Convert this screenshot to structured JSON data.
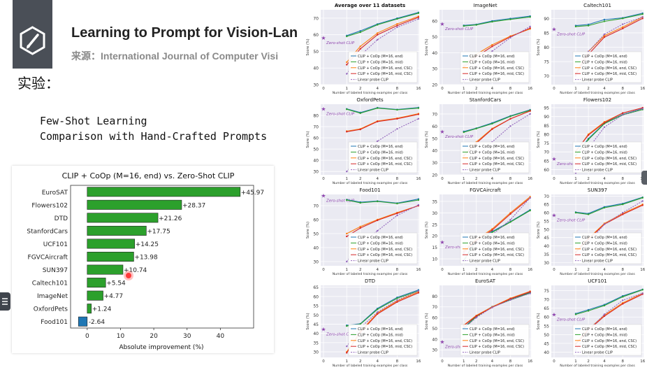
{
  "header": {
    "title": "Learning to Prompt for Vision-Lan",
    "subtitle": "来源：International Journal of Computer Visi",
    "logo_icon": "pencil-icon"
  },
  "section_label": "实验：",
  "points": [
    "Few-Shot Learning",
    "Comparison with Hand-Crafted Prompts"
  ],
  "chart_data": [
    {
      "type": "bar",
      "orientation": "horizontal",
      "title": "CLIP + CoOp (M=16, end) vs. Zero-Shot CLIP",
      "xlabel": "Absolute improvement (%)",
      "xlim": [
        -5,
        50
      ],
      "xticks": [
        0,
        10,
        20,
        30,
        40
      ],
      "categories": [
        "EuroSAT",
        "Flowers102",
        "DTD",
        "StanfordCars",
        "UCF101",
        "FGVCAircraft",
        "SUN397",
        "Caltech101",
        "ImageNet",
        "OxfordPets",
        "Food101"
      ],
      "values": [
        45.97,
        28.37,
        21.26,
        17.75,
        14.25,
        13.98,
        10.74,
        5.54,
        4.77,
        1.24,
        -2.64
      ],
      "labels": [
        "+45.97",
        "+28.37",
        "+21.26",
        "+17.75",
        "+14.25",
        "+13.98",
        "+10.74",
        "+5.54",
        "+4.77",
        "+1.24",
        "-2.64"
      ],
      "positive_color": "#2ca02c",
      "negative_color": "#1f77b4"
    },
    {
      "type": "line",
      "grid": true,
      "x": [
        0,
        1,
        2,
        4,
        8,
        16
      ],
      "xlabel": "Number of labeled training examples per class",
      "ylabel": "Score (%)",
      "zero_shot_label": "Zero-shot CLIP",
      "series_names": [
        "CLIP + CoOp (M=16, end)",
        "CLIP + CoOp (M=16, mid)",
        "CLIP + CoOp (M=16, end, CSC)",
        "CLIP + CoOp (M=16, mid, CSC)",
        "Linear probe CLIP"
      ],
      "series_colors": [
        "#1f77b4",
        "#2ca02c",
        "#ff7f0e",
        "#d62728",
        "#9467bd"
      ],
      "panels": [
        {
          "title": "Average over 11 datasets",
          "bold": true,
          "ylim": [
            30,
            75
          ],
          "yticks": [
            30,
            40,
            50,
            60,
            70
          ],
          "zs": 58.2,
          "series": [
            [
              59.5,
              62.3,
              66.4,
              69.9,
              73.4
            ],
            [
              59.0,
              61.5,
              66.0,
              69.5,
              73.0
            ],
            [
              43.5,
              53.0,
              61.0,
              66.5,
              71.0
            ],
            [
              42.0,
              51.5,
              60.0,
              65.5,
              70.5
            ],
            [
              36.5,
              47.5,
              57.0,
              64.5,
              69.5
            ]
          ]
        },
        {
          "title": "ImageNet",
          "ylim": [
            20,
            67
          ],
          "yticks": [
            20,
            30,
            40,
            50,
            60
          ],
          "zs": 58.2,
          "series": [
            [
              57.2,
              57.8,
              60.0,
              61.5,
              63.0
            ],
            [
              56.8,
              57.5,
              59.5,
              61.0,
              62.5
            ],
            [
              32.0,
              39.0,
              45.0,
              50.5,
              55.0
            ],
            [
              31.0,
              37.5,
              44.0,
              50.0,
              55.5
            ],
            [
              22.0,
              31.5,
              41.0,
              49.5,
              56.5
            ]
          ]
        },
        {
          "title": "Caltech101",
          "ylim": [
            67,
            93
          ],
          "yticks": [
            70,
            75,
            80,
            85,
            90
          ],
          "zs": 86.3,
          "series": [
            [
              87.5,
              87.9,
              89.6,
              90.2,
              91.8
            ],
            [
              87.2,
              87.5,
              89.0,
              90.0,
              91.5
            ],
            [
              71.0,
              78.5,
              84.0,
              87.0,
              90.5
            ],
            [
              70.5,
              77.5,
              83.5,
              86.5,
              90.0
            ],
            [
              70.0,
              78.5,
              84.5,
              88.0,
              90.5
            ]
          ]
        },
        {
          "title": "OxfordPets",
          "ylim": [
            27,
            90
          ],
          "yticks": [
            30,
            40,
            50,
            60,
            70,
            80
          ],
          "zs": 85.8,
          "series": [
            [
              85.8,
              82.6,
              86.9,
              85.3,
              87.0
            ],
            [
              85.5,
              82.0,
              86.5,
              85.0,
              86.5
            ],
            [
              66.0,
              68.0,
              75.0,
              77.5,
              81.5
            ],
            [
              65.5,
              67.5,
              74.5,
              77.0,
              81.0
            ],
            [
              30.0,
              44.0,
              57.0,
              68.0,
              77.0
            ]
          ]
        },
        {
          "title": "StanfordCars",
          "ylim": [
            20,
            78
          ],
          "yticks": [
            20,
            30,
            40,
            50,
            60,
            70
          ],
          "zs": 55.6,
          "series": [
            [
              55.6,
              58.3,
              62.6,
              68.4,
              73.4
            ],
            [
              55.0,
              58.0,
              62.0,
              68.0,
              73.0
            ],
            [
              36.0,
              47.0,
              58.0,
              66.0,
              72.5
            ],
            [
              35.5,
              46.0,
              57.5,
              66.0,
              72.5
            ],
            [
              24.0,
              35.0,
              47.0,
              60.0,
              70.0
            ]
          ]
        },
        {
          "title": "Flowers102",
          "ylim": [
            57,
            97
          ],
          "yticks": [
            60,
            65,
            70,
            75,
            80,
            85,
            90,
            95
          ],
          "zs": 66.1,
          "series": [
            [
              68.1,
              77.5,
              86.2,
              91.2,
              94.5
            ],
            [
              68.0,
              77.0,
              86.0,
              91.0,
              94.0
            ],
            [
              70.0,
              80.0,
              87.0,
              92.0,
              95.0
            ],
            [
              70.5,
              79.5,
              86.5,
              92.0,
              95.0
            ],
            [
              58.0,
              72.0,
              84.0,
              91.0,
              94.5
            ]
          ]
        },
        {
          "title": "Food101",
          "ylim": [
            27,
            78
          ],
          "yticks": [
            30,
            40,
            50,
            60,
            70
          ],
          "zs": 77.3,
          "series": [
            [
              74.3,
              72.5,
              73.3,
              71.8,
              74.7
            ],
            [
              74.0,
              72.0,
              73.0,
              71.5,
              74.0
            ],
            [
              50.0,
              55.0,
              60.0,
              65.0,
              70.0
            ],
            [
              48.0,
              54.0,
              59.5,
              64.5,
              70.0
            ],
            [
              30.0,
              42.0,
              52.0,
              63.0,
              70.5
            ]
          ]
        },
        {
          "title": "FGVCAircraft",
          "ylim": [
            7,
            38
          ],
          "yticks": [
            10,
            15,
            20,
            25,
            30,
            35
          ],
          "zs": 17.3,
          "series": [
            [
              9.5,
              18.5,
              21.9,
              26.2,
              31.3
            ],
            [
              9.0,
              18.0,
              21.5,
              26.0,
              31.0
            ],
            [
              13.5,
              18.5,
              23.0,
              30.0,
              37.0
            ],
            [
              13.0,
              18.0,
              22.5,
              29.5,
              36.5
            ],
            [
              12.5,
              17.0,
              20.5,
              27.0,
              36.5
            ]
          ]
        },
        {
          "title": "SUN397",
          "ylim": [
            28,
            71
          ],
          "yticks": [
            30,
            35,
            40,
            45,
            50,
            55,
            60,
            65,
            70
          ],
          "zs": 58.5,
          "series": [
            [
              60.3,
              59.5,
              63.5,
              65.5,
              69.3
            ],
            [
              60.0,
              59.0,
              63.0,
              65.0,
              69.0
            ],
            [
              36.5,
              44.5,
              53.5,
              59.5,
              65.0
            ],
            [
              36.0,
              44.0,
              53.0,
              59.0,
              64.5
            ],
            [
              32.0,
              42.0,
              53.0,
              60.0,
              67.0
            ]
          ]
        },
        {
          "title": "DTD",
          "ylim": [
            27,
            66
          ],
          "yticks": [
            30,
            35,
            40,
            45,
            50,
            55,
            60,
            65
          ],
          "zs": 42.3,
          "series": [
            [
              44.4,
              45.2,
              53.5,
              59.5,
              63.5
            ],
            [
              44.0,
              45.0,
              53.0,
              59.0,
              63.0
            ],
            [
              30.0,
              41.0,
              51.0,
              57.5,
              62.5
            ],
            [
              29.5,
              40.5,
              50.5,
              57.0,
              62.0
            ],
            [
              33.0,
              43.0,
              51.5,
              58.0,
              63.0
            ]
          ]
        },
        {
          "title": "EuroSAT",
          "ylim": [
            23,
            90
          ],
          "yticks": [
            30,
            40,
            50,
            60,
            70,
            80
          ],
          "zs": 37.6,
          "series": [
            [
              50.6,
              61.5,
              70.2,
              76.7,
              83.5
            ],
            [
              50.0,
              61.0,
              70.0,
              76.5,
              83.0
            ],
            [
              53.0,
              62.0,
              70.0,
              78.0,
              84.5
            ],
            [
              52.5,
              61.5,
              69.5,
              77.5,
              84.0
            ],
            [
              50.0,
              60.0,
              69.5,
              76.5,
              82.5
            ]
          ]
        },
        {
          "title": "UCF101",
          "ylim": [
            37,
            78
          ],
          "yticks": [
            40,
            45,
            50,
            55,
            60,
            65,
            70,
            75
          ],
          "zs": 61.5,
          "series": [
            [
              61.9,
              64.1,
              67.0,
              72.0,
              75.7
            ],
            [
              61.5,
              63.5,
              66.5,
              71.5,
              75.5
            ],
            [
              45.0,
              53.0,
              61.0,
              68.0,
              73.5
            ],
            [
              44.5,
              52.5,
              60.5,
              67.5,
              73.0
            ],
            [
              41.0,
              52.5,
              61.5,
              69.5,
              73.5
            ]
          ]
        }
      ]
    }
  ]
}
